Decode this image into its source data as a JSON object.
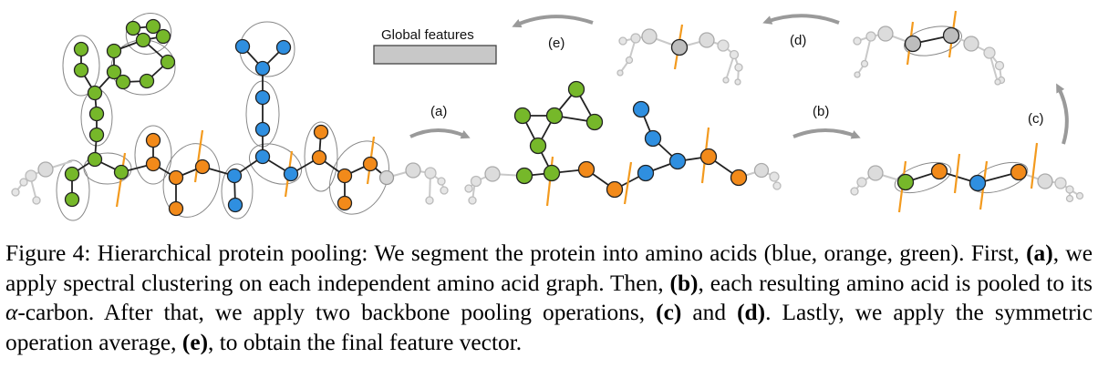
{
  "colors": {
    "blue": "#2f8fe0",
    "orange": "#f28a1a",
    "green": "#76b82a",
    "gray_node": "#bdbdbd",
    "light_node": "#dddddd",
    "cluster_outline": "#888888",
    "arrow": "#9a9a9a",
    "bond_marker": "#f39a1e",
    "global_box": "#c8c8c8"
  },
  "diagram": {
    "step_labels": [
      "(a)",
      "(b)",
      "(c)",
      "(d)",
      "(e)"
    ],
    "global_features_label": "Global features"
  },
  "caption": {
    "lead": "Figure 4: Hierarchical protein pooling: We segment the protein into amino acids (blue, orange, green). First, ",
    "a_label": "(a)",
    "after_a": ", we apply spectral clustering on each independent amino acid graph. Then, ",
    "b_label": "(b)",
    "after_b": ", each resulting amino acid is pooled to its ",
    "alpha": "α",
    "after_alpha": "-carbon. After that, we apply two backbone pooling operations, ",
    "c_label": "(c)",
    "and_text": " and ",
    "d_label": "(d)",
    "after_d": ". Lastly, we apply the symmetric operation average, ",
    "e_label": "(e)",
    "tail": ", to obtain the final feature vector."
  }
}
